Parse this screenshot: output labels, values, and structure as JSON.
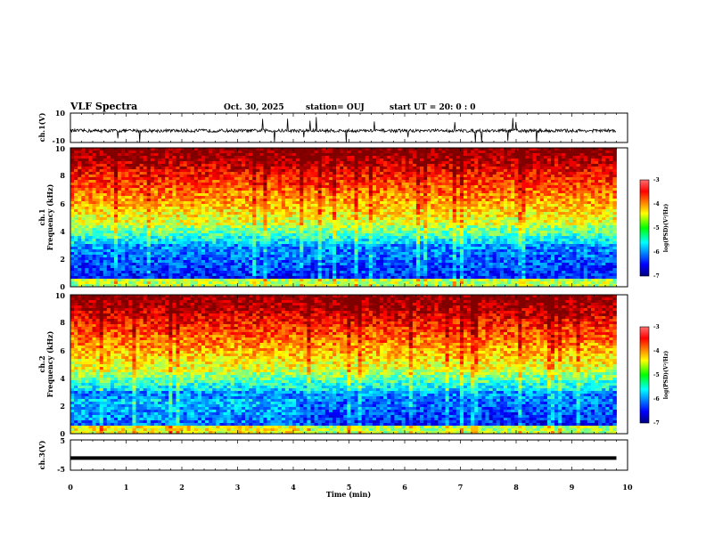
{
  "header": {
    "title": "VLF Spectra",
    "date": "Oct. 30, 2025",
    "station": "station= OUJ",
    "start": "start  UT =   20: 0  : 0"
  },
  "chart_data": [
    {
      "type": "line",
      "ylabel": "ch.1(V)",
      "ylim": [
        -10,
        10
      ],
      "yticks": [
        "10",
        "-10"
      ],
      "xlim": [
        0,
        10
      ],
      "note": "noisy waveform around -2 V with sporadic spikes"
    },
    {
      "type": "heatmap",
      "ylabel_line1": "ch.1",
      "ylabel_line2": "Frequency  (kHz)",
      "ylim": [
        0,
        10
      ],
      "yticks": [
        "0",
        "2",
        "4",
        "6",
        "8",
        "10"
      ],
      "xlim": [
        0,
        10
      ],
      "data_end_min": 9.8,
      "colorbar": {
        "label": "log(PSD)(V²/Hz)",
        "range": [
          -7,
          -3
        ],
        "ticks": [
          "-3",
          "-4",
          "-5",
          "-6",
          "-7"
        ]
      }
    },
    {
      "type": "heatmap",
      "ylabel_line1": "ch.2",
      "ylabel_line2": "Frequency  (kHz)",
      "ylim": [
        0,
        10
      ],
      "yticks": [
        "0",
        "2",
        "4",
        "6",
        "8",
        "10"
      ],
      "xlim": [
        0,
        10
      ],
      "data_end_min": 9.8,
      "colorbar": {
        "label": "log(PSD)(V²/Hz)",
        "range": [
          -7,
          -3
        ],
        "ticks": [
          "-3",
          "-4",
          "-5",
          "-6",
          "-7"
        ]
      }
    },
    {
      "type": "line",
      "ylabel": "ch.3(V)",
      "ylim": [
        -5,
        5
      ],
      "yticks": [
        "5",
        "-5"
      ],
      "xlim": [
        0,
        10
      ],
      "note": "constant level near -1 V"
    }
  ],
  "xaxis": {
    "label": "Time  (min)",
    "ticks": [
      "0",
      "1",
      "2",
      "3",
      "4",
      "5",
      "6",
      "7",
      "8",
      "9",
      "10"
    ]
  }
}
